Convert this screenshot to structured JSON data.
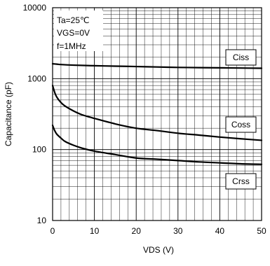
{
  "chart_data": {
    "type": "line",
    "xlabel": "VDS (V)",
    "ylabel": "Capacitance (pF)",
    "xlim": [
      0,
      50
    ],
    "ylim": [
      10,
      10000
    ],
    "yscale": "log",
    "x_ticks": [
      0,
      10,
      20,
      30,
      40,
      50
    ],
    "y_ticks": [
      10,
      100,
      1000,
      10000
    ],
    "x_tick_labels": [
      "0",
      "10",
      "20",
      "30",
      "40",
      "50"
    ],
    "y_tick_labels": [
      "10",
      "100",
      "1000",
      "10000"
    ],
    "grid": true,
    "conditions": [
      "Ta=25℃",
      "VGS=0V",
      "f=1MHz"
    ],
    "series": [
      {
        "name": "Ciss",
        "x": [
          0,
          1,
          2,
          5,
          10,
          15,
          20,
          25,
          30,
          35,
          40,
          45,
          50
        ],
        "values": [
          1620,
          1600,
          1580,
          1550,
          1520,
          1500,
          1480,
          1460,
          1440,
          1430,
          1420,
          1410,
          1400
        ]
      },
      {
        "name": "Coss",
        "x": [
          0,
          0.5,
          1,
          2,
          3,
          5,
          7,
          10,
          15,
          20,
          25,
          30,
          35,
          40,
          45,
          50
        ],
        "values": [
          800,
          640,
          550,
          460,
          410,
          350,
          310,
          275,
          230,
          200,
          185,
          170,
          160,
          150,
          142,
          135
        ]
      },
      {
        "name": "Crss",
        "x": [
          0,
          0.5,
          1,
          2,
          3,
          5,
          7,
          10,
          15,
          20,
          25,
          30,
          35,
          40,
          45,
          50
        ],
        "values": [
          220,
          185,
          165,
          145,
          130,
          115,
          105,
          95,
          85,
          76,
          73,
          70,
          67,
          65,
          63,
          62
        ]
      }
    ]
  }
}
